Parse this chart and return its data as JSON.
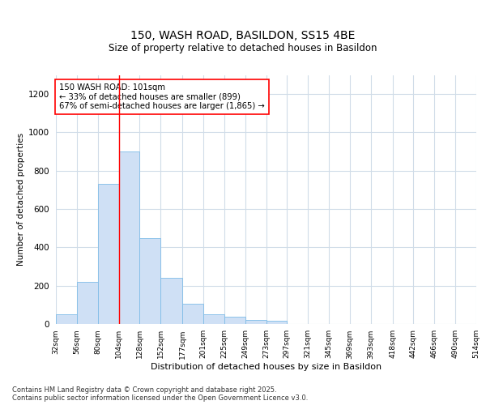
{
  "title1": "150, WASH ROAD, BASILDON, SS15 4BE",
  "title2": "Size of property relative to detached houses in Basildon",
  "xlabel": "Distribution of detached houses by size in Basildon",
  "ylabel": "Number of detached properties",
  "footer": "Contains HM Land Registry data © Crown copyright and database right 2025.\nContains public sector information licensed under the Open Government Licence v3.0.",
  "bar_color": "#cfe0f5",
  "bar_edge_color": "#7fbce8",
  "background_color": "#ffffff",
  "grid_color": "#d0dce8",
  "annotation_text": "150 WASH ROAD: 101sqm\n← 33% of detached houses are smaller (899)\n67% of semi-detached houses are larger (1,865) →",
  "vline_x": 104,
  "bins": [
    32,
    56,
    80,
    104,
    128,
    152,
    177,
    201,
    225,
    249,
    273,
    297,
    321,
    345,
    369,
    393,
    418,
    442,
    466,
    490,
    514
  ],
  "counts": [
    50,
    220,
    730,
    900,
    450,
    240,
    105,
    50,
    40,
    20,
    15,
    0,
    0,
    0,
    0,
    0,
    0,
    0,
    0,
    0
  ],
  "ylim": [
    0,
    1300
  ],
  "yticks": [
    0,
    200,
    400,
    600,
    800,
    1000,
    1200
  ],
  "tick_labels": [
    "32sqm",
    "56sqm",
    "80sqm",
    "104sqm",
    "128sqm",
    "152sqm",
    "177sqm",
    "201sqm",
    "225sqm",
    "249sqm",
    "273sqm",
    "297sqm",
    "321sqm",
    "345sqm",
    "369sqm",
    "393sqm",
    "418sqm",
    "442sqm",
    "466sqm",
    "490sqm",
    "514sqm"
  ]
}
